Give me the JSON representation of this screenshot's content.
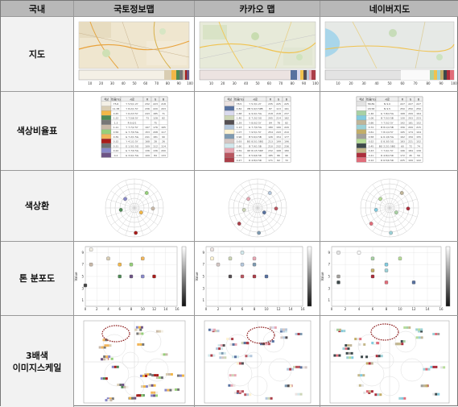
{
  "header": {
    "corner": "국내",
    "col1": "국토정보맵",
    "col2": "카카오 맵",
    "col3": "네이버지도"
  },
  "rows": {
    "map": "지도",
    "ratio": "색상비율표",
    "wheel": "색상환",
    "tone": "톤 분포도",
    "image_scale_line1": "3배색",
    "image_scale_line2": "이미지스케일"
  },
  "colors": {
    "header_bg": "#b8b8b8",
    "rowhead_bg": "#f2f2f2",
    "border": "#999999",
    "highlight_circle": "#8b1a1a"
  },
  "icons": {
    "wheel": "polar-hue-wheel",
    "tone": "tone-scatter-plot",
    "scale": "image-scale-chart"
  },
  "colorbar_ticks": [
    "10",
    "20",
    "30",
    "40",
    "50",
    "60",
    "70",
    "80",
    "90",
    "100"
  ],
  "tone_axis_x": [
    "0",
    "2",
    "4",
    "6",
    "8",
    "10",
    "12",
    "14",
    "16"
  ],
  "tone_axis_y": [
    "1",
    "3",
    "5",
    "7",
    "9"
  ],
  "tone_ylabel": "Value",
  "tables": {
    "guktojeongbo": {
      "headers": [
        "색상",
        "비율(%)",
        "시료",
        "R",
        "G",
        "B"
      ],
      "rows": [
        [
          "",
          "75.6",
          "Y 5.5/1 2Y",
          "232",
          "223",
          "218"
        ],
        [
          "",
          "11.38",
          "Y 8.2/1 5Y",
          "236",
          "220",
          "203"
        ],
        [
          "",
          "0.45",
          "Y 6.2/3 5Y",
          "243",
          "185",
          "71"
        ],
        [
          "",
          "1.22",
          "Y 7.5/6 5Y",
          "73",
          "128",
          "82"
        ],
        [
          "",
          "1.3",
          "R 6.0/1",
          "",
          "75",
          ""
        ],
        [
          "",
          "1.11",
          "Y 7.7/2 5Y",
          "197",
          "176",
          "165"
        ],
        [
          "",
          "0.56",
          "G 7.7/9 5G",
          "153",
          "208",
          "117"
        ],
        [
          "",
          "0.39",
          "G 7.2/1 5G",
          "241",
          "181",
          "90"
        ],
        [
          "",
          "0.32",
          "Y 4.1/1 5Y",
          "168",
          "28",
          "26"
        ],
        [
          "",
          "0.31",
          "G 1.5/1 5G",
          "109",
          "112",
          "114"
        ],
        [
          "",
          "0.22",
          "G 7.7/9 5G",
          "136",
          "136",
          "200"
        ],
        [
          "",
          "0.2",
          "G 3.0/1 5G",
          "109",
          "84",
          "133"
        ]
      ],
      "swatches": [
        "#f4f0e6",
        "#d9cdb3",
        "#f2b748",
        "#4f8a56",
        "#777777",
        "#c9b9a8",
        "#96cf7a",
        "#f1b55a",
        "#a81c1a",
        "#6d7072",
        "#8888c8",
        "#6d5485"
      ]
    },
    "kakao": {
      "headers": [
        "색상",
        "비율(%)",
        "시료",
        "R",
        "G",
        "B"
      ],
      "rows": [
        [
          "",
          "78.5",
          "Y 5.3/1 2Y",
          "235",
          "225",
          "225"
        ],
        [
          "",
          "4.82",
          "PB 5.9/3 5PB",
          "87",
          "113",
          "161"
        ],
        [
          "",
          "1.68",
          "G 9.0/1 5G",
          "218",
          "218",
          "237"
        ],
        [
          "",
          "1.40",
          "G 7.2/2 5G",
          "205",
          "214",
          "182"
        ],
        [
          "",
          "1.29",
          "Y 8.0/2 5Y",
          "84",
          "78",
          "82"
        ],
        [
          "",
          "1.13",
          "G 7.7/9 5G",
          "180",
          "199",
          "220"
        ],
        [
          "",
          "1.07",
          "Y 9.5/1 5Y",
          "254",
          "243",
          "210"
        ],
        [
          "",
          "0.96",
          "B 5.6/4 5B",
          "126",
          "154",
          "177"
        ],
        [
          "",
          "0.93",
          "BG 8.5/1 5BG",
          "213",
          "199",
          "196"
        ],
        [
          "",
          "0.90",
          "B 7.9/1 5B",
          "210",
          "232",
          "236"
        ],
        [
          "",
          "0.59",
          "RP 8.1/5 5RP",
          "232",
          "168",
          "180"
        ],
        [
          "",
          "0.55",
          "R 5.6/6 5R",
          "185",
          "86",
          "96"
        ],
        [
          "",
          "0.27",
          "R 4.8/4 5R",
          "171",
          "62",
          "72"
        ]
      ],
      "swatches": [
        "#ece3e1",
        "#57719f",
        "#dadaee",
        "#cdd6b6",
        "#544e52",
        "#b4c7dc",
        "#fef3d2",
        "#7e9ab1",
        "#d5c7c4",
        "#d2e8ec",
        "#e8a8b4",
        "#b95660",
        "#ab3e48"
      ]
    },
    "naver": {
      "headers": [
        "색상",
        "비율(%)",
        "시료",
        "R",
        "G",
        "B"
      ],
      "rows": [
        [
          "",
          "58.89",
          "N 9.0",
          "227",
          "227",
          "227"
        ],
        [
          "",
          "18.58",
          "N 9.5",
          "250",
          "250",
          "250"
        ],
        [
          "",
          "1.46",
          "G 7.8/4 5G",
          "168",
          "209",
          "164"
        ],
        [
          "",
          "1.06",
          "B 7.5/3 5B",
          "130",
          "203",
          "223"
        ],
        [
          "",
          "0.86",
          "Y 7.5/2 5Y",
          "192",
          "181",
          "152"
        ],
        [
          "",
          "0.72",
          "B 8.1/4 5B",
          "156",
          "209",
          "215"
        ],
        [
          "",
          "0.61",
          "Y 8.1/4 5Y",
          "195",
          "174",
          "104"
        ],
        [
          "",
          "0.58",
          "G 6.1/6 5G",
          "162",
          "159",
          "155"
        ],
        [
          "",
          "0.52",
          "G 8.3/5 5G",
          "183",
          "221",
          "152"
        ],
        [
          "",
          "0.45",
          "BG 2.2/1 5BG",
          "60",
          "72",
          "74"
        ],
        [
          "",
          "0.43",
          "Y 7.0/1 5Y",
          "196",
          "184",
          "139"
        ],
        [
          "",
          "0.21",
          "R 4.8/4 5R",
          "172",
          "45",
          "59"
        ],
        [
          "",
          "0.12",
          "R 6.5/6 5R",
          "225",
          "109",
          "122"
        ]
      ],
      "swatches": [
        "#e3e3e3",
        "#fafafa",
        "#a8d1a4",
        "#82cbdf",
        "#c0b598",
        "#9cd1d7",
        "#c3ae68",
        "#a29f9b",
        "#b7dd98",
        "#3c484a",
        "#c4b88b",
        "#ac2d3b",
        "#e16d7a"
      ]
    }
  }
}
